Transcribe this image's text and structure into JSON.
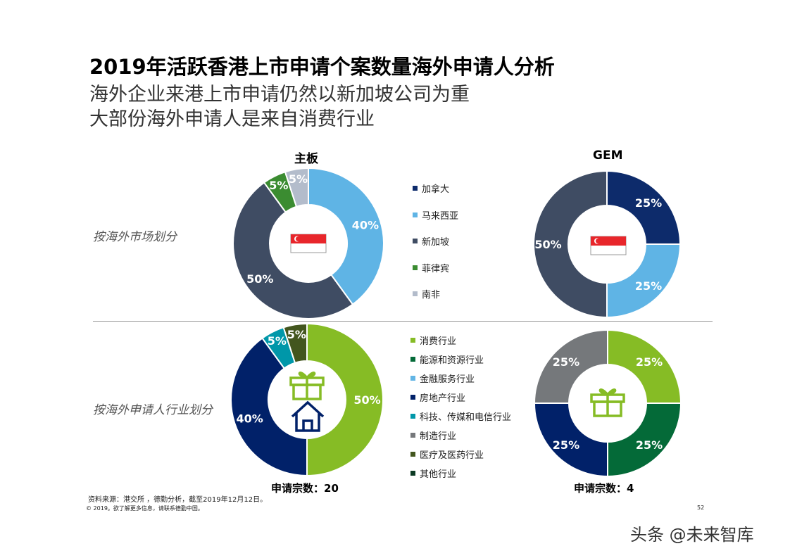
{
  "title": "2019年活跃香港上市申请个案数量海外申请人分析",
  "subtitle1": "海外企业来港上市申请仍然以新加坡公司为重",
  "subtitle2": "大部份海外申请人是来自消费行业",
  "row_labels": [
    "按海外市场划分",
    "按海外申请人行业划分"
  ],
  "col_titles": [
    "主板",
    "GEM"
  ],
  "legend_market": [
    {
      "label": "加拿大",
      "color": "#0d2b6b"
    },
    {
      "label": "马来西亚",
      "color": "#5fb4e5"
    },
    {
      "label": "新加坡",
      "color": "#3f4c63"
    },
    {
      "label": "菲律宾",
      "color": "#3b8c31"
    },
    {
      "label": "南非",
      "color": "#b3bccb"
    }
  ],
  "legend_industry": [
    {
      "label": "消费行业",
      "color": "#86bc25"
    },
    {
      "label": "能源和资源行业",
      "color": "#046a38"
    },
    {
      "label": "金融服务行业",
      "color": "#62b5e5"
    },
    {
      "label": "房地产行业",
      "color": "#012169"
    },
    {
      "label": "科技、传媒和电信行业",
      "color": "#0097a9"
    },
    {
      "label": "制造行业",
      "color": "#75787b"
    },
    {
      "label": "医疗及医药行业",
      "color": "#43561e"
    },
    {
      "label": "其他行业",
      "color": "#0c3a24"
    }
  ],
  "chart_data": [
    {
      "type": "pie",
      "title": "主板",
      "group": "按海外市场划分",
      "categories": [
        "马来西亚",
        "新加坡",
        "菲律宾",
        "南非"
      ],
      "values": [
        40,
        50,
        5,
        5
      ],
      "colors": [
        "#5fb4e5",
        "#3f4c63",
        "#3b8c31",
        "#b3bccb"
      ],
      "labels": [
        "40%",
        "50%",
        "5%",
        "5%"
      ]
    },
    {
      "type": "pie",
      "title": "GEM",
      "group": "按海外市场划分",
      "categories": [
        "加拿大",
        "马来西亚",
        "新加坡"
      ],
      "values": [
        25,
        25,
        50
      ],
      "colors": [
        "#0d2b6b",
        "#5fb4e5",
        "#3f4c63"
      ],
      "labels": [
        "25%",
        "25%",
        "50%"
      ]
    },
    {
      "type": "pie",
      "group": "按海外申请人行业划分",
      "categories": [
        "消费行业",
        "房地产行业",
        "科技、传媒和电信行业",
        "医疗及医药行业"
      ],
      "values": [
        50,
        40,
        5,
        5
      ],
      "colors": [
        "#86bc25",
        "#012169",
        "#0097a9",
        "#43561e"
      ],
      "labels": [
        "50%",
        "40%",
        "5%",
        "5%"
      ]
    },
    {
      "type": "pie",
      "group": "按海外申请人行业划分",
      "categories": [
        "消费行业",
        "能源和资源行业",
        "房地产行业",
        "制造行业"
      ],
      "values": [
        25,
        25,
        25,
        25
      ],
      "colors": [
        "#86bc25",
        "#046a38",
        "#012169",
        "#75787b"
      ],
      "labels": [
        "25%",
        "25%",
        "25%",
        "25%"
      ]
    }
  ],
  "counts": [
    "申请宗数：20",
    "申请宗数：4"
  ],
  "source": "资料来源：港交所 ，德勤分析，截至2019年12月12日。",
  "copyright": "© 2019。欲了解更多信息，请联系德勤中国。",
  "page_number": "52",
  "watermark": "头条 @未来智库"
}
